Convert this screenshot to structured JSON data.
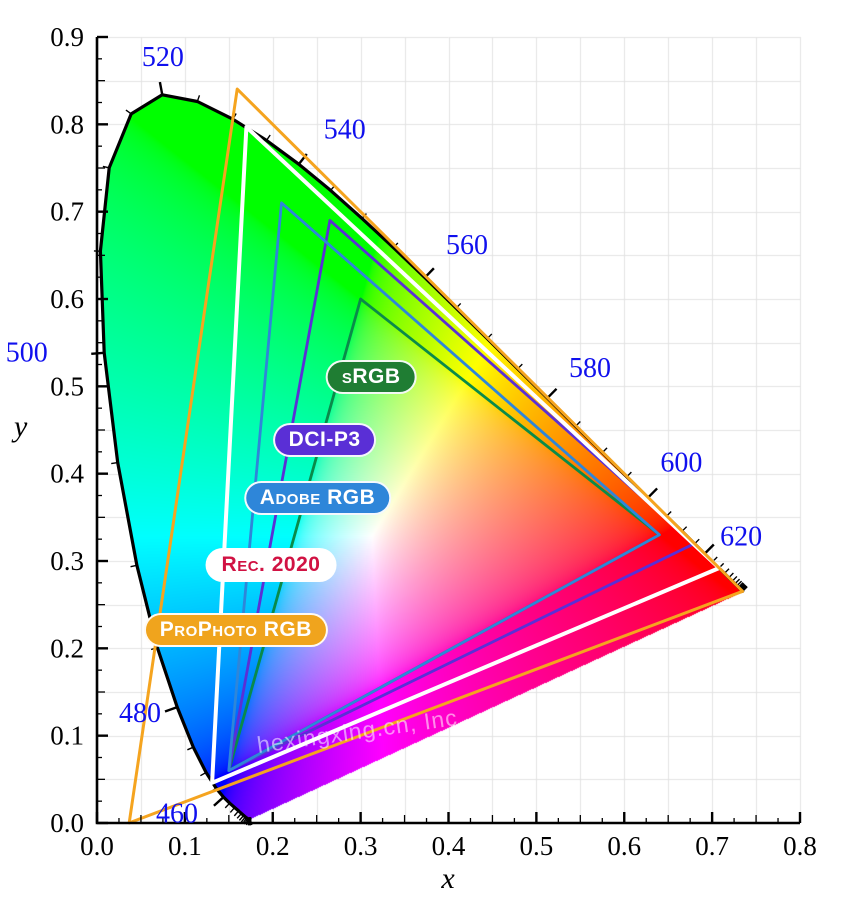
{
  "chart_data": {
    "type": "chromaticity-diagram",
    "title": "",
    "xlabel": "x",
    "ylabel": "y",
    "xlim": [
      0,
      0.8
    ],
    "ylim": [
      0,
      0.9
    ],
    "xticks": [
      0,
      0.1,
      0.2,
      0.3,
      0.4,
      0.5,
      0.6,
      0.7,
      0.8
    ],
    "yticks": [
      0,
      0.1,
      0.2,
      0.3,
      0.4,
      0.5,
      0.6,
      0.7,
      0.8,
      0.9
    ],
    "grid": {
      "show": true,
      "step": 0.05,
      "color": "#e3e3e3"
    },
    "style": {
      "axis_color": "#000000",
      "tick_label_color": "#000000",
      "wavelength_label_color": "#1010ee",
      "locus_outline_color": "#000000"
    },
    "spectral_locus": [
      [
        380,
        0.1741,
        0.005
      ],
      [
        385,
        0.174,
        0.005
      ],
      [
        390,
        0.1738,
        0.0049
      ],
      [
        395,
        0.1736,
        0.0049
      ],
      [
        400,
        0.1733,
        0.0048
      ],
      [
        405,
        0.173,
        0.0048
      ],
      [
        410,
        0.1726,
        0.0048
      ],
      [
        415,
        0.1721,
        0.0048
      ],
      [
        420,
        0.1714,
        0.0051
      ],
      [
        425,
        0.1703,
        0.0058
      ],
      [
        430,
        0.1689,
        0.0069
      ],
      [
        435,
        0.1669,
        0.0086
      ],
      [
        440,
        0.1644,
        0.0109
      ],
      [
        445,
        0.1611,
        0.0138
      ],
      [
        450,
        0.1566,
        0.0177
      ],
      [
        455,
        0.151,
        0.0227
      ],
      [
        460,
        0.144,
        0.0297
      ],
      [
        465,
        0.1355,
        0.0399
      ],
      [
        470,
        0.1241,
        0.0578
      ],
      [
        475,
        0.1096,
        0.0868
      ],
      [
        480,
        0.0913,
        0.1327
      ],
      [
        485,
        0.0687,
        0.2007
      ],
      [
        490,
        0.0454,
        0.295
      ],
      [
        495,
        0.0235,
        0.4127
      ],
      [
        500,
        0.0082,
        0.5384
      ],
      [
        505,
        0.0039,
        0.6548
      ],
      [
        510,
        0.0139,
        0.7502
      ],
      [
        515,
        0.0389,
        0.812
      ],
      [
        520,
        0.0743,
        0.8338
      ],
      [
        525,
        0.1142,
        0.8262
      ],
      [
        530,
        0.1547,
        0.8059
      ],
      [
        535,
        0.1929,
        0.7816
      ],
      [
        540,
        0.2296,
        0.7543
      ],
      [
        545,
        0.2658,
        0.7243
      ],
      [
        550,
        0.3016,
        0.6923
      ],
      [
        555,
        0.3373,
        0.6588
      ],
      [
        560,
        0.3731,
        0.6245
      ],
      [
        565,
        0.4087,
        0.5896
      ],
      [
        570,
        0.4441,
        0.5547
      ],
      [
        575,
        0.4788,
        0.5202
      ],
      [
        580,
        0.5125,
        0.4866
      ],
      [
        585,
        0.5448,
        0.4544
      ],
      [
        590,
        0.5752,
        0.4242
      ],
      [
        595,
        0.6029,
        0.3965
      ],
      [
        600,
        0.627,
        0.3725
      ],
      [
        605,
        0.6482,
        0.3514
      ],
      [
        610,
        0.6658,
        0.334
      ],
      [
        615,
        0.6801,
        0.3197
      ],
      [
        620,
        0.6915,
        0.3083
      ],
      [
        625,
        0.7006,
        0.2993
      ],
      [
        630,
        0.7079,
        0.292
      ],
      [
        635,
        0.714,
        0.2859
      ],
      [
        640,
        0.719,
        0.2809
      ],
      [
        645,
        0.723,
        0.277
      ],
      [
        650,
        0.726,
        0.274
      ],
      [
        655,
        0.7283,
        0.2717
      ],
      [
        660,
        0.73,
        0.27
      ],
      [
        665,
        0.7311,
        0.2689
      ],
      [
        670,
        0.732,
        0.268
      ],
      [
        675,
        0.7327,
        0.2673
      ],
      [
        680,
        0.7334,
        0.2666
      ],
      [
        685,
        0.734,
        0.266
      ],
      [
        690,
        0.7344,
        0.2656
      ],
      [
        695,
        0.7346,
        0.2654
      ],
      [
        700,
        0.7347,
        0.2653
      ]
    ],
    "wavelength_labels": [
      {
        "nm": 460,
        "x": 0.091,
        "y": 0.011
      },
      {
        "nm": 480,
        "x": 0.049,
        "y": 0.126
      },
      {
        "nm": 500,
        "x": -0.08,
        "y": 0.539
      },
      {
        "nm": 520,
        "x": 0.075,
        "y": 0.877
      },
      {
        "nm": 540,
        "x": 0.282,
        "y": 0.794
      },
      {
        "nm": 560,
        "x": 0.421,
        "y": 0.662
      },
      {
        "nm": 580,
        "x": 0.561,
        "y": 0.521
      },
      {
        "nm": 600,
        "x": 0.665,
        "y": 0.413
      },
      {
        "nm": 620,
        "x": 0.733,
        "y": 0.328
      }
    ],
    "gamuts": [
      {
        "name": "sRGB",
        "color": "#0a8a4a",
        "stroke_width": 2.8,
        "vertices": [
          [
            0.64,
            0.33
          ],
          [
            0.3,
            0.6
          ],
          [
            0.15,
            0.06
          ]
        ]
      },
      {
        "name": "DCI-P3",
        "color": "#5a2fd6",
        "stroke_width": 2.8,
        "vertices": [
          [
            0.68,
            0.32
          ],
          [
            0.265,
            0.69
          ],
          [
            0.15,
            0.06
          ]
        ]
      },
      {
        "name": "Adobe RGB",
        "color": "#2e86d9",
        "stroke_width": 2.8,
        "vertices": [
          [
            0.64,
            0.33
          ],
          [
            0.21,
            0.71
          ],
          [
            0.15,
            0.06
          ]
        ]
      },
      {
        "name": "Rec. 2020",
        "color": "#ffffff",
        "stroke_width": 4,
        "vertices": [
          [
            0.708,
            0.292
          ],
          [
            0.17,
            0.797
          ],
          [
            0.131,
            0.046
          ]
        ]
      },
      {
        "name": "ProPhoto RGB",
        "color": "#f5a41f",
        "stroke_width": 3,
        "vertices": [
          [
            0.7347,
            0.2653
          ],
          [
            0.1596,
            0.8404
          ],
          [
            0.0366,
            0.0001
          ]
        ]
      }
    ],
    "legend_pills": [
      {
        "label": "sRGB",
        "bg": "#1f7d33",
        "fg": "#ffffff",
        "x": 0.312,
        "y": 0.511
      },
      {
        "label": "DCI-P3",
        "bg": "#5a2fd6",
        "fg": "#ffffff",
        "x": 0.259,
        "y": 0.439
      },
      {
        "label": "Adobe RGB",
        "bg": "#2e86d9",
        "fg": "#ffffff",
        "x": 0.251,
        "y": 0.372
      },
      {
        "label": "Rec. 2020",
        "bg": "#ffffff",
        "fg": "#d11243",
        "x": 0.198,
        "y": 0.295
      },
      {
        "label": "ProPhoto RGB",
        "bg": "#f0a41d",
        "fg": "#ffffff",
        "x": 0.158,
        "y": 0.221
      }
    ],
    "watermark": {
      "text": "hexingxing.cn, Inc.",
      "color": "#ffffff",
      "opacity": 0.55,
      "x": 0.3,
      "y": 0.105,
      "rotation_deg": -8
    }
  }
}
